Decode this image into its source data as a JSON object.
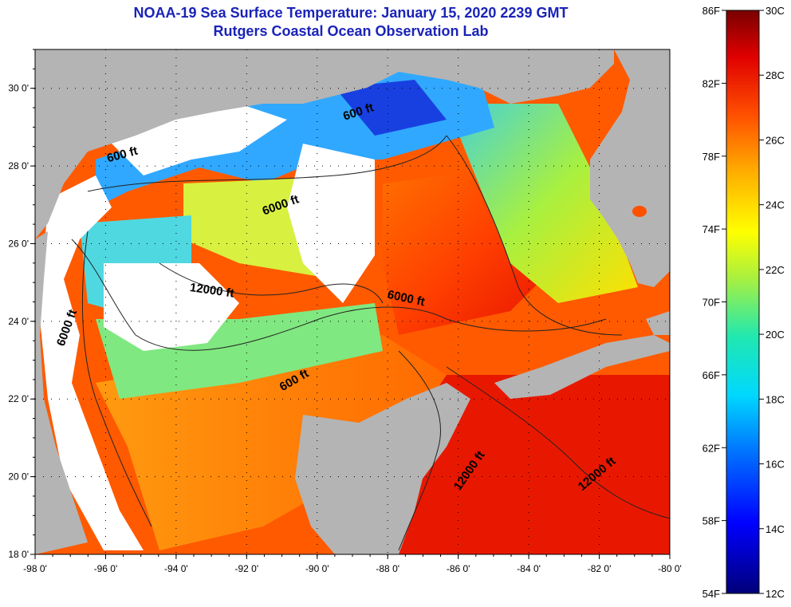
{
  "title": {
    "line1": "NOAA-19 Sea Surface Temperature:  January 15, 2020 2239 GMT",
    "line2": "Rutgers Coastal Ocean Observation Lab"
  },
  "map": {
    "lon_range": [
      -98,
      -80
    ],
    "lat_range": [
      18,
      31
    ],
    "lat_ticks": [
      {
        "value": 30,
        "label": "30 0'"
      },
      {
        "value": 28,
        "label": "28 0'"
      },
      {
        "value": 26,
        "label": "26 0'"
      },
      {
        "value": 24,
        "label": "24 0'"
      },
      {
        "value": 22,
        "label": "22 0'"
      },
      {
        "value": 20,
        "label": "20 0'"
      },
      {
        "value": 18,
        "label": "18 0'"
      }
    ],
    "lon_ticks": [
      {
        "value": -98,
        "label": "-98 0'"
      },
      {
        "value": -96,
        "label": "-96 0'"
      },
      {
        "value": -94,
        "label": "-94 0'"
      },
      {
        "value": -92,
        "label": "-92 0'"
      },
      {
        "value": -90,
        "label": "-90 0'"
      },
      {
        "value": -88,
        "label": "-88 0'"
      },
      {
        "value": -86,
        "label": "-86 0'"
      },
      {
        "value": -84,
        "label": "-84 0'"
      },
      {
        "value": -82,
        "label": "-82 0'"
      },
      {
        "value": -80,
        "label": "-80 0'"
      }
    ],
    "contour_labels": [
      {
        "text": "600 ft",
        "lon": -95.5,
        "lat": 28.2,
        "rot": -15
      },
      {
        "text": "600 ft",
        "lon": -88.8,
        "lat": 29.3,
        "rot": -18
      },
      {
        "text": "6000 ft",
        "lon": -91.0,
        "lat": 26.9,
        "rot": -20
      },
      {
        "text": "12000 ft",
        "lon": -93.0,
        "lat": 24.7,
        "rot": 8
      },
      {
        "text": "6000 ft",
        "lon": -97.0,
        "lat": 23.8,
        "rot": -70
      },
      {
        "text": "6000 ft",
        "lon": -87.5,
        "lat": 24.5,
        "rot": 12
      },
      {
        "text": "600 ft",
        "lon": -90.6,
        "lat": 22.4,
        "rot": -30
      },
      {
        "text": "12000 ft",
        "lon": -85.6,
        "lat": 20.1,
        "rot": -55
      },
      {
        "text": "12000 ft",
        "lon": -82.0,
        "lat": 20.0,
        "rot": -40
      }
    ],
    "colors": {
      "land": "#b4b4b4",
      "cloud": "#ffffff",
      "frame": "#000000"
    }
  },
  "colorbar": {
    "f_labels": [
      "86F",
      "82F",
      "78F",
      "74F",
      "70F",
      "66F",
      "62F",
      "58F",
      "54F"
    ],
    "c_labels": [
      "30C",
      "28C",
      "26C",
      "24C",
      "22C",
      "20C",
      "18C",
      "16C",
      "14C",
      "12C"
    ],
    "range_c": [
      12,
      30
    ],
    "range_f": [
      54,
      86
    ]
  }
}
